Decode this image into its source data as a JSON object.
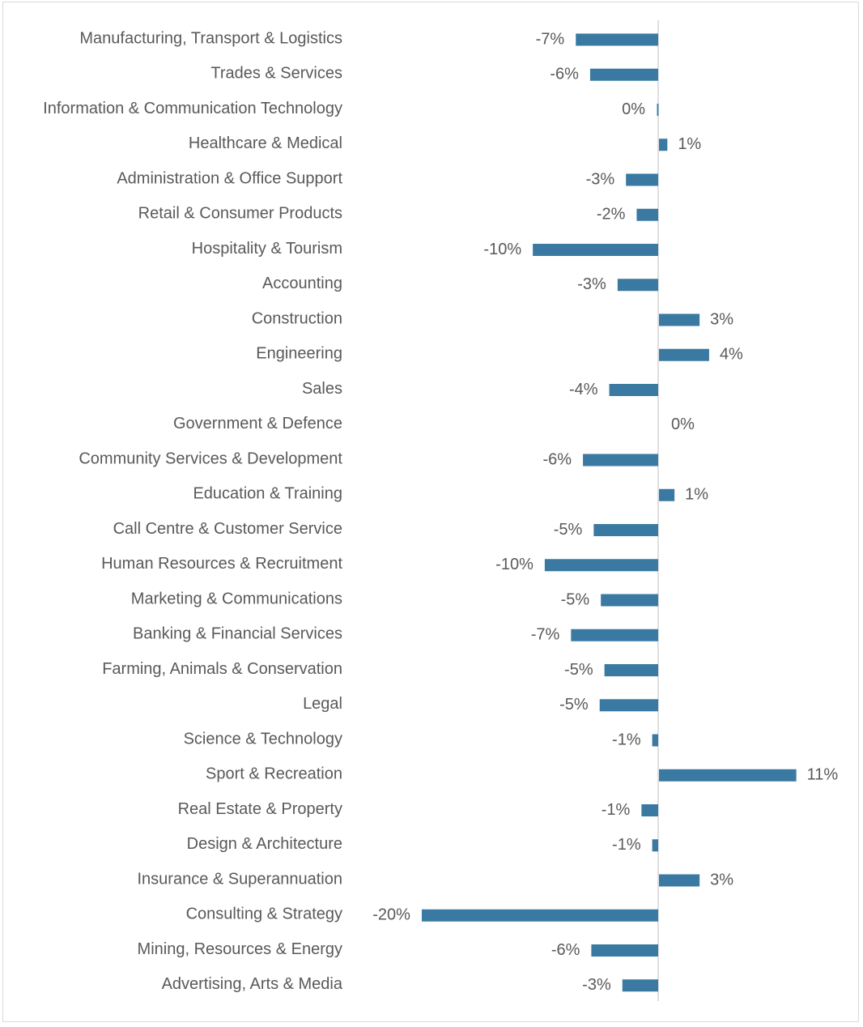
{
  "chart_data": {
    "type": "bar",
    "orientation": "horizontal",
    "title": "",
    "xlabel": "",
    "ylabel": "",
    "bar_color": "#3a7aa2",
    "axis_color": "#bfbfbf",
    "xlim": [
      -22,
      13
    ],
    "grid": false,
    "legend": "none",
    "categories": [
      "Manufacturing, Transport & Logistics",
      "Trades & Services",
      "Information & Communication Technology",
      "Healthcare & Medical",
      "Administration & Office Support",
      "Retail & Consumer Products",
      "Hospitality & Tourism",
      "Accounting",
      "Construction",
      "Engineering",
      "Sales",
      "Government & Defence",
      "Community Services & Development",
      "Education & Training",
      "Call Centre & Customer Service",
      "Human Resources & Recruitment",
      "Marketing & Communications",
      "Banking & Financial Services",
      "Farming, Animals & Conservation",
      "Legal",
      "Science & Technology",
      "Sport & Recreation",
      "Real Estate & Property",
      "Design & Architecture",
      "Insurance & Superannuation",
      "Consulting & Strategy",
      "Mining, Resources & Energy",
      "Advertising, Arts & Media"
    ],
    "values": [
      -6.9,
      -5.7,
      -0.1,
      0.7,
      -2.7,
      -1.8,
      -10.5,
      -3.4,
      3.4,
      4.2,
      -4.1,
      0,
      -6.3,
      1.3,
      -5.4,
      -9.5,
      -4.8,
      -7.3,
      -4.5,
      -4.9,
      -0.5,
      11.5,
      -1.4,
      -0.5,
      3.4,
      -19.8,
      -5.6,
      -3.0
    ],
    "value_labels": [
      "-7%",
      "-6%",
      "0%",
      "1%",
      "-3%",
      "-2%",
      "-10%",
      "-3%",
      "3%",
      "4%",
      "-4%",
      "0%",
      "-6%",
      "1%",
      "-5%",
      "-10%",
      "-5%",
      "-7%",
      "-5%",
      "-5%",
      "-1%",
      "11%",
      "-1%",
      "-1%",
      "3%",
      "-20%",
      "-6%",
      "-3%"
    ]
  }
}
